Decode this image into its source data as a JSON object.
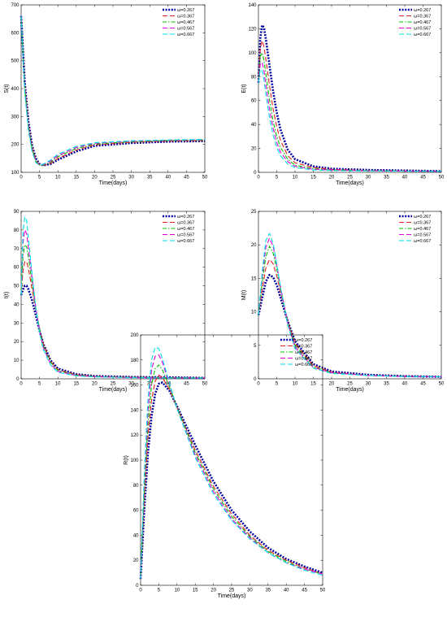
{
  "figure": {
    "legend_items": [
      "ω=0.267",
      "ω=0.367",
      "ω=0.467",
      "ω=0.567",
      "ω=0.667"
    ],
    "series_styles": [
      {
        "color": "#0000a0",
        "dash": "2,1.6",
        "width": 2.6
      },
      {
        "color": "#e02020",
        "dash": "6,3",
        "width": 1.1
      },
      {
        "color": "#00c000",
        "dash": "5,2,1.5,2",
        "width": 1.1
      },
      {
        "color": "#e000e0",
        "dash": "6,3",
        "width": 1.1
      },
      {
        "color": "#00e0e0",
        "dash": "6,3",
        "width": 1.1
      }
    ]
  },
  "chart_data": [
    {
      "type": "line",
      "ylabel": "S(t)",
      "xlabel": "Time(days)",
      "xlim": [
        0,
        50
      ],
      "ylim": [
        100,
        700
      ],
      "xticks": [
        0,
        5,
        10,
        15,
        20,
        25,
        30,
        35,
        40,
        45,
        50
      ],
      "yticks": [
        100,
        200,
        300,
        400,
        500,
        600,
        700
      ],
      "legend_position": "top-right",
      "x": [
        0,
        1,
        2,
        3,
        4,
        5,
        6,
        8,
        10,
        15,
        20,
        30,
        40,
        50
      ],
      "series": [
        {
          "name": "ω=0.267",
          "values": [
            660,
            420,
            280,
            195,
            150,
            130,
            125,
            130,
            145,
            175,
            195,
            205,
            210,
            212
          ]
        },
        {
          "name": "ω=0.367",
          "values": [
            660,
            410,
            270,
            188,
            145,
            127,
            124,
            132,
            150,
            180,
            198,
            208,
            212,
            214
          ]
        },
        {
          "name": "ω=0.467",
          "values": [
            660,
            400,
            262,
            182,
            140,
            126,
            125,
            136,
            156,
            185,
            201,
            210,
            214,
            216
          ]
        },
        {
          "name": "ω=0.567",
          "values": [
            660,
            392,
            255,
            178,
            137,
            126,
            127,
            140,
            160,
            189,
            204,
            212,
            215,
            217
          ]
        },
        {
          "name": "ω=0.667",
          "values": [
            660,
            385,
            248,
            174,
            135,
            126,
            129,
            144,
            165,
            193,
            206,
            213,
            216,
            218
          ]
        }
      ]
    },
    {
      "type": "line",
      "ylabel": "E(t)",
      "xlabel": "Time(days)",
      "xlim": [
        0,
        50
      ],
      "ylim": [
        0,
        140
      ],
      "xticks": [
        0,
        5,
        10,
        15,
        20,
        25,
        30,
        35,
        40,
        45,
        50
      ],
      "yticks": [
        0,
        20,
        40,
        60,
        80,
        100,
        120,
        140
      ],
      "legend_position": "top-right",
      "x": [
        0,
        0.5,
        1,
        1.5,
        2,
        3,
        4,
        5,
        6,
        8,
        10,
        15,
        20,
        30,
        40,
        50
      ],
      "series": [
        {
          "name": "ω=0.267",
          "values": [
            75,
            112,
            123,
            121,
            112,
            90,
            68,
            50,
            36,
            19,
            11,
            5,
            3,
            2,
            1.5,
            1
          ]
        },
        {
          "name": "ω=0.367",
          "values": [
            75,
            104,
            110,
            105,
            95,
            73,
            53,
            38,
            27,
            14,
            8,
            4,
            2.5,
            1.5,
            1.2,
            1
          ]
        },
        {
          "name": "ω=0.467",
          "values": [
            75,
            97,
            100,
            94,
            83,
            61,
            43,
            30,
            21,
            11,
            6,
            3,
            2,
            1.5,
            1,
            1
          ]
        },
        {
          "name": "ω=0.567",
          "values": [
            75,
            91,
            92,
            85,
            74,
            53,
            37,
            25,
            17,
            9,
            5,
            2.5,
            2,
            1.3,
            1,
            1
          ]
        },
        {
          "name": "ω=0.667",
          "values": [
            75,
            86,
            85,
            78,
            66,
            46,
            31,
            21,
            14,
            7,
            4,
            2,
            1.5,
            1.2,
            1,
            1
          ]
        }
      ]
    },
    {
      "type": "line",
      "ylabel": "I(t)",
      "xlabel": "Time(days)",
      "xlim": [
        0,
        50
      ],
      "ylim": [
        0,
        90
      ],
      "xticks": [
        0,
        5,
        10,
        15,
        20,
        25,
        30,
        35,
        40,
        45,
        50
      ],
      "yticks": [
        0,
        10,
        20,
        30,
        40,
        50,
        60,
        70,
        80,
        90
      ],
      "legend_position": "top-right",
      "x": [
        0,
        0.5,
        1,
        1.5,
        2,
        3,
        4,
        5,
        6,
        8,
        10,
        15,
        20,
        30,
        40,
        50
      ],
      "series": [
        {
          "name": "ω=0.267",
          "values": [
            45,
            48,
            50,
            50,
            48,
            42,
            34,
            26,
            19,
            10,
            5.5,
            2.5,
            1.5,
            1,
            0.8,
            0.5
          ]
        },
        {
          "name": "ω=0.367",
          "values": [
            45,
            58,
            63,
            63,
            59,
            48,
            37,
            27,
            19,
            9.5,
            5,
            2.2,
            1.3,
            0.9,
            0.7,
            0.5
          ]
        },
        {
          "name": "ω=0.467",
          "values": [
            45,
            66,
            72,
            71,
            65,
            51,
            38,
            27,
            18,
            9,
            4.5,
            2,
            1.2,
            0.8,
            0.6,
            0.5
          ]
        },
        {
          "name": "ω=0.567",
          "values": [
            45,
            73,
            80,
            78,
            70,
            54,
            38,
            26,
            17,
            8,
            4,
            1.8,
            1.1,
            0.7,
            0.5,
            0.4
          ]
        },
        {
          "name": "ω=0.667",
          "values": [
            45,
            79,
            87,
            85,
            75,
            56,
            38,
            25,
            16,
            7.5,
            3.5,
            1.6,
            1,
            0.7,
            0.5,
            0.4
          ]
        }
      ]
    },
    {
      "type": "line",
      "ylabel": "M(t)",
      "xlabel": "Time(days)",
      "xlim": [
        0,
        50
      ],
      "ylim": [
        0,
        25
      ],
      "xticks": [
        0,
        5,
        10,
        15,
        20,
        25,
        30,
        35,
        40,
        45,
        50
      ],
      "yticks": [
        0,
        5,
        10,
        15,
        20,
        25
      ],
      "legend_position": "top-right",
      "x": [
        0,
        1,
        2,
        3,
        4,
        5,
        6,
        8,
        10,
        15,
        20,
        30,
        40,
        50
      ],
      "series": [
        {
          "name": "ω=0.267",
          "values": [
            9.5,
            12,
            14.5,
            15.5,
            15.2,
            14,
            12.2,
            8.6,
            5.6,
            2.2,
            1.1,
            0.6,
            0.4,
            0.3
          ]
        },
        {
          "name": "ω=0.367",
          "values": [
            9.5,
            13.2,
            16.5,
            17.8,
            17.2,
            15.4,
            13,
            8.6,
            5.3,
            2,
            1,
            0.5,
            0.4,
            0.3
          ]
        },
        {
          "name": "ω=0.467",
          "values": [
            9.5,
            14.3,
            18.2,
            19.8,
            18.8,
            16.4,
            13.6,
            8.5,
            5,
            1.8,
            0.9,
            0.5,
            0.35,
            0.3
          ]
        },
        {
          "name": "ω=0.567",
          "values": [
            9.5,
            15.1,
            19.6,
            21,
            19.8,
            17,
            13.8,
            8.3,
            4.7,
            1.7,
            0.9,
            0.5,
            0.35,
            0.3
          ]
        },
        {
          "name": "ω=0.667",
          "values": [
            9.5,
            15.8,
            20.6,
            21.7,
            20.3,
            17.2,
            13.8,
            8,
            4.5,
            1.6,
            0.8,
            0.5,
            0.35,
            0.3
          ]
        }
      ]
    },
    {
      "type": "line",
      "ylabel": "R(t)",
      "xlabel": "Time(days)",
      "xlim": [
        0,
        50
      ],
      "ylim": [
        0,
        200
      ],
      "xticks": [
        0,
        5,
        10,
        15,
        20,
        25,
        30,
        35,
        40,
        45,
        50
      ],
      "yticks": [
        0,
        20,
        40,
        60,
        80,
        100,
        120,
        140,
        160,
        180,
        200
      ],
      "legend_position": "top-right",
      "x": [
        0,
        1,
        2,
        3,
        4,
        5,
        6,
        8,
        10,
        15,
        20,
        25,
        30,
        35,
        40,
        45,
        50
      ],
      "series": [
        {
          "name": "ω=0.267",
          "values": [
            5,
            60,
            105,
            135,
            153,
            161,
            162,
            155,
            143,
            112,
            83,
            60,
            43,
            30,
            21,
            15,
            10
          ]
        },
        {
          "name": "ω=0.367",
          "values": [
            5,
            68,
            118,
            148,
            163,
            168,
            166,
            156,
            142,
            108,
            79,
            57,
            40,
            28,
            20,
            14,
            9
          ]
        },
        {
          "name": "ω=0.467",
          "values": [
            5,
            75,
            128,
            160,
            173,
            176,
            172,
            158,
            142,
            106,
            77,
            55,
            39,
            27,
            19,
            13,
            9
          ]
        },
        {
          "name": "ω=0.567",
          "values": [
            5,
            82,
            138,
            172,
            183,
            184,
            178,
            160,
            141,
            104,
            75,
            53,
            38,
            26,
            18,
            13,
            9
          ]
        },
        {
          "name": "ω=0.667",
          "values": [
            5,
            88,
            148,
            180,
            190,
            189,
            181,
            161,
            141,
            102,
            73,
            52,
            37,
            26,
            18,
            12,
            8
          ]
        }
      ]
    }
  ]
}
